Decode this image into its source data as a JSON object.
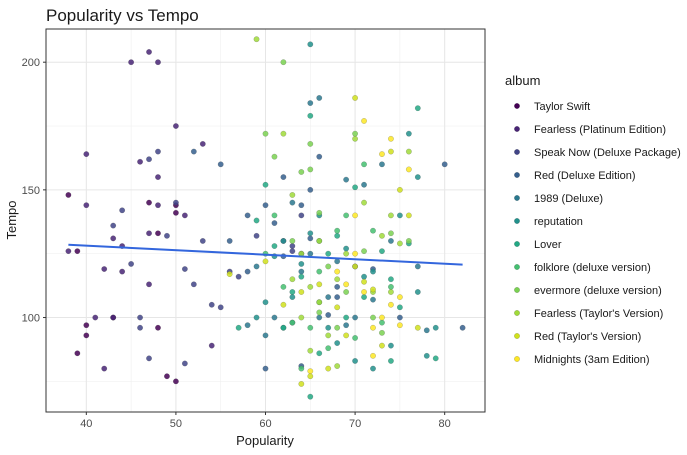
{
  "chart_data": {
    "type": "scatter",
    "title": "Popularity vs Tempo",
    "xlabel": "Popularity",
    "ylabel": "Tempo",
    "xlim": [
      35.5,
      84.5
    ],
    "ylim": [
      63,
      213
    ],
    "xticks": [
      40,
      50,
      60,
      70,
      80
    ],
    "yticks": [
      100,
      150,
      200
    ],
    "grid": true,
    "legend_title": "album",
    "legend_position": "right",
    "trend_line": {
      "x": [
        38,
        82
      ],
      "y": [
        128.5,
        120.7
      ],
      "color": "#3366dd"
    },
    "series": [
      {
        "name": "Taylor Swift",
        "color": "#440154",
        "points": [
          [
            38,
            148
          ],
          [
            39,
            86
          ],
          [
            40,
            97
          ],
          [
            40,
            93
          ],
          [
            43,
            100
          ],
          [
            47,
            145
          ],
          [
            48,
            96
          ],
          [
            48,
            133
          ],
          [
            49,
            77
          ],
          [
            50,
            144
          ],
          [
            50,
            141
          ],
          [
            50,
            75
          ],
          [
            39,
            126
          ]
        ]
      },
      {
        "name": "Fearless (Platinum Edition)",
        "color": "#482475",
        "points": [
          [
            45,
            200
          ],
          [
            47,
            204
          ],
          [
            48,
            200
          ],
          [
            40,
            164
          ],
          [
            46,
            161
          ],
          [
            47,
            113
          ],
          [
            41,
            100
          ],
          [
            42,
            119
          ],
          [
            38,
            126
          ],
          [
            40,
            144
          ],
          [
            42,
            80
          ],
          [
            43,
            131
          ],
          [
            43,
            100
          ],
          [
            44,
            128
          ],
          [
            44,
            118
          ],
          [
            47,
            133
          ],
          [
            48,
            155
          ],
          [
            48,
            144
          ],
          [
            50,
            175
          ],
          [
            51,
            140
          ],
          [
            53,
            168
          ],
          [
            54,
            89
          ]
        ]
      },
      {
        "name": "Speak Now (Deluxe Package)",
        "color": "#414487",
        "points": [
          [
            43,
            136
          ],
          [
            44,
            142
          ],
          [
            45,
            121
          ],
          [
            46,
            100
          ],
          [
            46,
            96
          ],
          [
            47,
            84
          ],
          [
            47,
            162
          ],
          [
            48,
            165
          ],
          [
            49,
            132
          ],
          [
            50,
            145
          ],
          [
            51,
            119
          ],
          [
            51,
            82
          ],
          [
            52,
            113
          ],
          [
            53,
            130
          ],
          [
            54,
            105
          ],
          [
            55,
            104
          ],
          [
            56,
            118
          ],
          [
            57,
            116
          ],
          [
            59,
            132
          ],
          [
            62,
            130
          ],
          [
            63,
            128
          ],
          [
            64,
            140
          ],
          [
            63,
            126
          ]
        ]
      },
      {
        "name": "Red (Deluxe Edition)",
        "color": "#355f8d",
        "points": [
          [
            52,
            165
          ],
          [
            55,
            160
          ],
          [
            56,
            130
          ],
          [
            58,
            118
          ],
          [
            58,
            140
          ],
          [
            60,
            144
          ],
          [
            61,
            137
          ],
          [
            62,
            124
          ],
          [
            60,
            80
          ],
          [
            62,
            155
          ],
          [
            64,
            144
          ],
          [
            64,
            125
          ],
          [
            65,
            150
          ],
          [
            64,
            81
          ],
          [
            65,
            131
          ],
          [
            66,
            163
          ],
          [
            67,
            101
          ],
          [
            68,
            112
          ],
          [
            68,
            108
          ],
          [
            70,
            120
          ],
          [
            80,
            160
          ],
          [
            82,
            96
          ],
          [
            75,
            100
          ],
          [
            72,
            119
          ]
        ]
      },
      {
        "name": "1989 (Deluxe)",
        "color": "#2a788e",
        "points": [
          [
            58,
            97
          ],
          [
            59,
            120
          ],
          [
            60,
            93
          ],
          [
            61,
            100
          ],
          [
            63,
            98
          ],
          [
            63,
            145
          ],
          [
            64,
            118
          ],
          [
            65,
            125
          ],
          [
            65,
            184
          ],
          [
            66,
            186
          ],
          [
            66,
            100
          ],
          [
            67,
            108
          ],
          [
            68,
            122
          ],
          [
            69,
            154
          ],
          [
            69,
            97
          ],
          [
            70,
            100
          ],
          [
            71,
            152
          ],
          [
            72,
            107
          ],
          [
            73,
            160
          ],
          [
            74,
            130
          ],
          [
            78,
            95
          ],
          [
            77,
            120
          ]
        ]
      },
      {
        "name": "reputation",
        "color": "#21918c",
        "points": [
          [
            59,
            100
          ],
          [
            60,
            106
          ],
          [
            61,
            124
          ],
          [
            62,
            130
          ],
          [
            62,
            96
          ],
          [
            63,
            108
          ],
          [
            64,
            121
          ],
          [
            65,
            207
          ],
          [
            65,
            133
          ],
          [
            66,
            140
          ],
          [
            67,
            96
          ],
          [
            68,
            90
          ],
          [
            69,
            127
          ],
          [
            70,
            83
          ],
          [
            71,
            116
          ],
          [
            72,
            118
          ],
          [
            72,
            80
          ],
          [
            74,
            89
          ],
          [
            75,
            140
          ],
          [
            76,
            172
          ],
          [
            77,
            110
          ],
          [
            78,
            85
          ],
          [
            79,
            96
          ],
          [
            77,
            155
          ]
        ]
      },
      {
        "name": "Lover",
        "color": "#22a884",
        "points": [
          [
            57,
            96
          ],
          [
            59,
            138
          ],
          [
            60,
            152
          ],
          [
            61,
            128
          ],
          [
            62,
            96
          ],
          [
            63,
            110
          ],
          [
            64,
            116
          ],
          [
            65,
            179
          ],
          [
            65,
            69
          ],
          [
            66,
            130
          ],
          [
            66,
            86
          ],
          [
            67,
            125
          ],
          [
            68,
            132
          ],
          [
            69,
            100
          ],
          [
            70,
            151
          ],
          [
            71,
            108
          ],
          [
            73,
            126
          ],
          [
            74,
            115
          ],
          [
            75,
            104
          ],
          [
            76,
            129
          ],
          [
            77,
            182
          ],
          [
            79,
            84
          ],
          [
            74,
            83
          ]
        ]
      },
      {
        "name": "folklore (deluxe version)",
        "color": "#44bf70",
        "points": [
          [
            60,
            125
          ],
          [
            61,
            140
          ],
          [
            62,
            112
          ],
          [
            63,
            98
          ],
          [
            64,
            80
          ],
          [
            65,
            96
          ],
          [
            66,
            106
          ],
          [
            66,
            118
          ],
          [
            67,
            88
          ],
          [
            68,
            134
          ],
          [
            69,
            140
          ],
          [
            70,
            92
          ],
          [
            71,
            160
          ],
          [
            72,
            134
          ],
          [
            73,
            98
          ],
          [
            74,
            112
          ]
        ]
      },
      {
        "name": "evermore (deluxe version)",
        "color": "#7ad151",
        "points": [
          [
            60,
            172
          ],
          [
            61,
            163
          ],
          [
            62,
            200
          ],
          [
            63,
            130
          ],
          [
            64,
            157
          ],
          [
            65,
            168
          ],
          [
            65,
            158
          ],
          [
            66,
            141
          ],
          [
            66,
            102
          ],
          [
            67,
            120
          ],
          [
            68,
            96
          ],
          [
            69,
            110
          ],
          [
            70,
            172
          ],
          [
            71,
            126
          ],
          [
            72,
            100
          ],
          [
            73,
            94
          ],
          [
            74,
            133
          ],
          [
            76,
            130
          ]
        ]
      },
      {
        "name": "Fearless (Taylor's Version)",
        "color": "#a0da39",
        "points": [
          [
            59,
            209
          ],
          [
            62,
            172
          ],
          [
            63,
            148
          ],
          [
            63,
            115
          ],
          [
            64,
            125
          ],
          [
            64,
            100
          ],
          [
            65,
            112
          ],
          [
            65,
            87
          ],
          [
            66,
            106
          ],
          [
            66,
            130
          ],
          [
            67,
            93
          ],
          [
            68,
            81
          ],
          [
            68,
            115
          ],
          [
            69,
            125
          ],
          [
            70,
            170
          ],
          [
            71,
            145
          ],
          [
            72,
            110
          ],
          [
            73,
            132
          ],
          [
            74,
            140
          ],
          [
            75,
            129
          ],
          [
            76,
            165
          ],
          [
            74,
            110
          ]
        ]
      },
      {
        "name": "Red (Taylor's Version)",
        "color": "#d0e11c",
        "points": [
          [
            56,
            117
          ],
          [
            60,
            122
          ],
          [
            62,
            105
          ],
          [
            64,
            110
          ],
          [
            64,
            74
          ],
          [
            65,
            77
          ],
          [
            66,
            113
          ],
          [
            67,
            80
          ],
          [
            68,
            104
          ],
          [
            69,
            93
          ],
          [
            70,
            186
          ],
          [
            70,
            120
          ],
          [
            71,
            114
          ],
          [
            72,
            111
          ],
          [
            73,
            89
          ],
          [
            74,
            165
          ],
          [
            75,
            150
          ],
          [
            76,
            140
          ],
          [
            77,
            96
          ]
        ]
      },
      {
        "name": "Midnights (3am Edition)",
        "color": "#fde725",
        "points": [
          [
            65,
            79
          ],
          [
            68,
            118
          ],
          [
            69,
            113
          ],
          [
            70,
            140
          ],
          [
            71,
            177
          ],
          [
            72,
            96
          ],
          [
            73,
            164
          ],
          [
            74,
            170
          ],
          [
            74,
            105
          ],
          [
            75,
            97
          ],
          [
            76,
            158
          ],
          [
            70,
            125
          ],
          [
            71,
            110
          ],
          [
            72,
            85
          ],
          [
            73,
            100
          ],
          [
            75,
            108
          ]
        ]
      }
    ]
  }
}
